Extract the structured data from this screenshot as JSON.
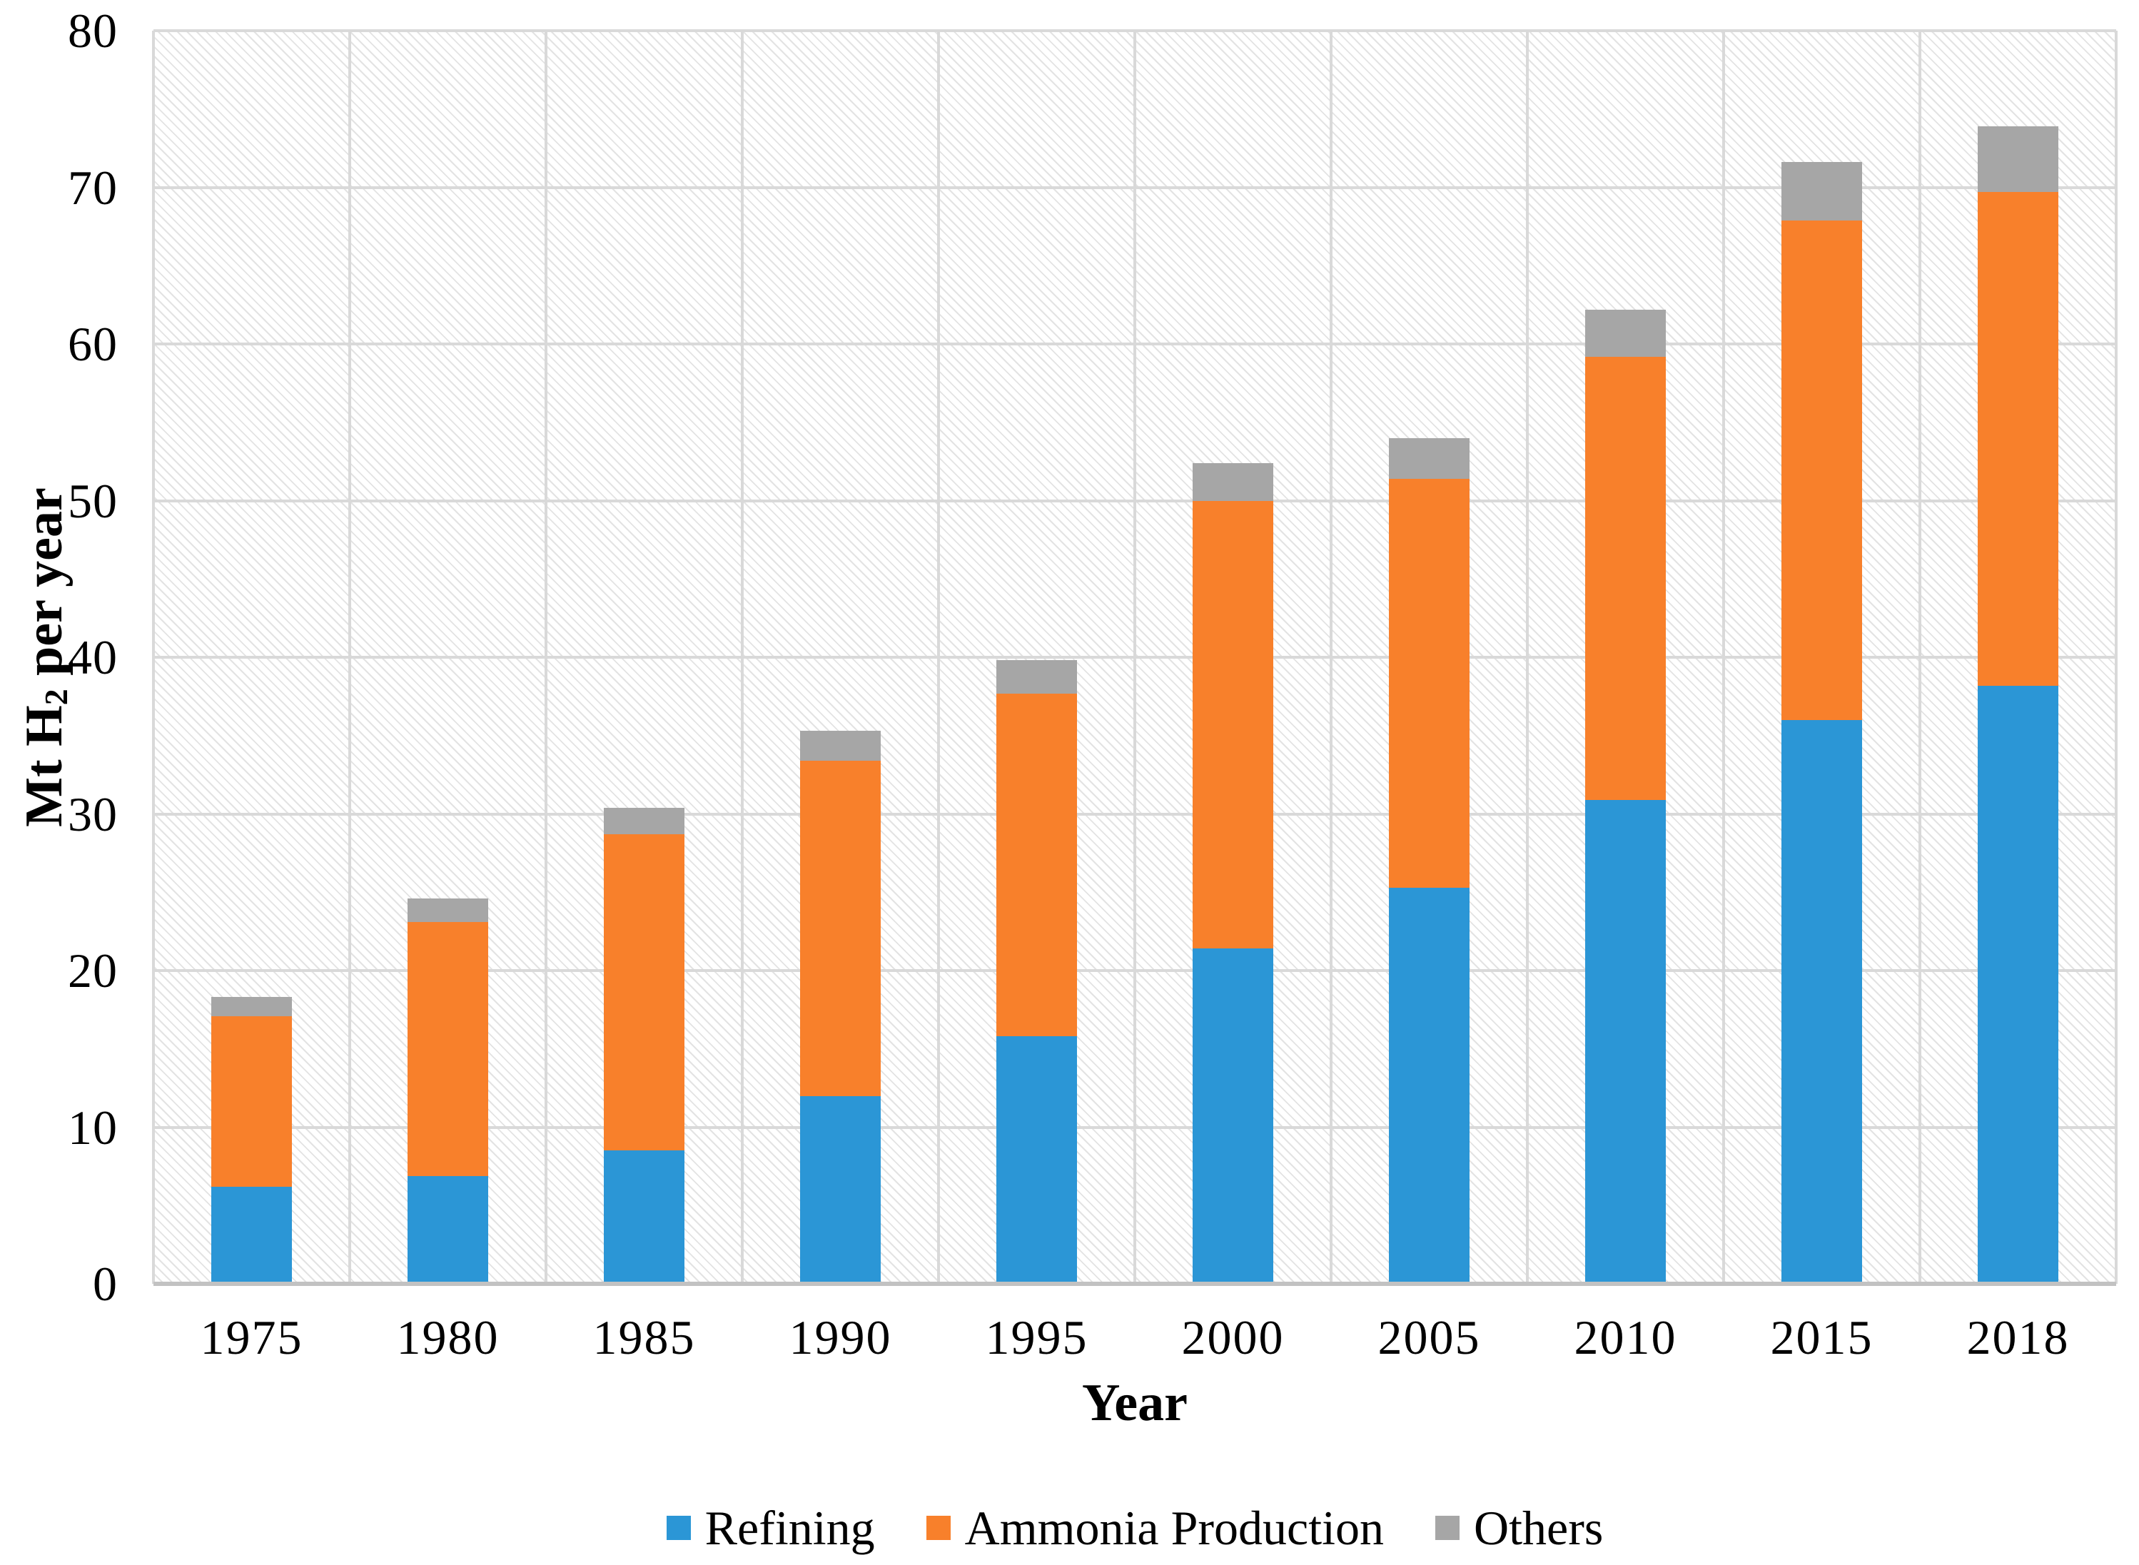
{
  "chart_data": {
    "type": "bar",
    "stacked": true,
    "categories": [
      "1975",
      "1980",
      "1985",
      "1990",
      "1995",
      "2000",
      "2005",
      "2010",
      "2015",
      "2018"
    ],
    "series": [
      {
        "name": "Refining",
        "color": "#2B96D6",
        "values": [
          6.2,
          6.9,
          8.5,
          12.0,
          15.8,
          21.4,
          25.3,
          30.9,
          36.0,
          38.2
        ]
      },
      {
        "name": "Ammonia Production",
        "color": "#F8802B",
        "values": [
          10.9,
          16.2,
          20.2,
          21.4,
          21.9,
          28.6,
          26.1,
          28.3,
          31.9,
          31.5
        ]
      },
      {
        "name": "Others",
        "color": "#A6A6A6",
        "values": [
          1.2,
          1.5,
          1.7,
          1.9,
          2.1,
          2.4,
          2.6,
          3.0,
          3.7,
          4.2
        ]
      }
    ],
    "xlabel": "Year",
    "ylabel": "Mt H2 per year",
    "ylim": [
      0,
      80
    ],
    "y_ticks": [
      0,
      10,
      20,
      30,
      40,
      50,
      60,
      70,
      80
    ],
    "grid": true,
    "plot_background": "diagonal-hatch",
    "legend_position": "bottom"
  },
  "axes": {
    "y_title_prefix": "Mt H",
    "y_title_subscript": "2",
    "y_title_suffix": " per year",
    "x_title": "Year"
  },
  "colors": {
    "gridline": "#D9D9D9",
    "axis_line": "#C2C2C2",
    "hatch_line": "#E3E3E3",
    "text": "#000000"
  }
}
